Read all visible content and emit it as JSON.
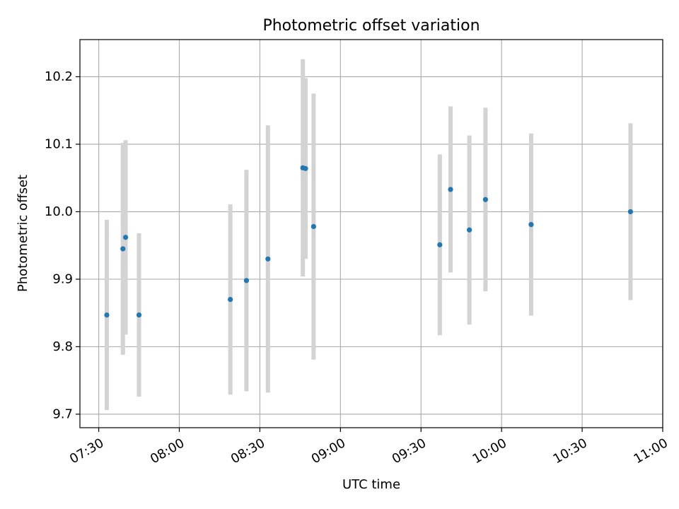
{
  "chart_data": {
    "type": "scatter",
    "title": "Photometric offset variation",
    "xlabel": "UTC time",
    "ylabel": "Photometric offset",
    "x_tick_labels": [
      "07:30",
      "08:00",
      "08:30",
      "09:00",
      "09:30",
      "10:00",
      "10:30",
      "11:00"
    ],
    "y_ticks": [
      9.7,
      9.8,
      9.9,
      10.0,
      10.1,
      10.2
    ],
    "y_tick_labels": [
      "9.7",
      "9.8",
      "9.9",
      "10.0",
      "10.1",
      "10.2"
    ],
    "xlim": [
      "07:23",
      "11:00"
    ],
    "ylim": [
      9.68,
      10.255
    ],
    "grid": true,
    "marker_color": "#1f77b4",
    "errorbar_color": "#d3d3d3",
    "points": [
      {
        "x": "07:33",
        "y": 9.847,
        "yerr": 0.141
      },
      {
        "x": "07:39",
        "y": 9.945,
        "yerr": 0.157
      },
      {
        "x": "07:40",
        "y": 9.962,
        "yerr": 0.144
      },
      {
        "x": "07:45",
        "y": 9.847,
        "yerr": 0.121
      },
      {
        "x": "08:19",
        "y": 9.87,
        "yerr": 0.141
      },
      {
        "x": "08:25",
        "y": 9.898,
        "yerr": 0.164
      },
      {
        "x": "08:33",
        "y": 9.93,
        "yerr": 0.198
      },
      {
        "x": "08:46",
        "y": 10.065,
        "yerr": 0.161
      },
      {
        "x": "08:47",
        "y": 10.064,
        "yerr": 0.134
      },
      {
        "x": "08:50",
        "y": 9.978,
        "yerr": 0.197
      },
      {
        "x": "09:37",
        "y": 9.951,
        "yerr": 0.134
      },
      {
        "x": "09:41",
        "y": 10.033,
        "yerr": 0.123
      },
      {
        "x": "09:48",
        "y": 9.973,
        "yerr": 0.14
      },
      {
        "x": "09:54",
        "y": 10.018,
        "yerr": 0.136
      },
      {
        "x": "10:11",
        "y": 9.981,
        "yerr": 0.135
      },
      {
        "x": "10:48",
        "y": 10.0,
        "yerr": 0.131
      }
    ]
  }
}
